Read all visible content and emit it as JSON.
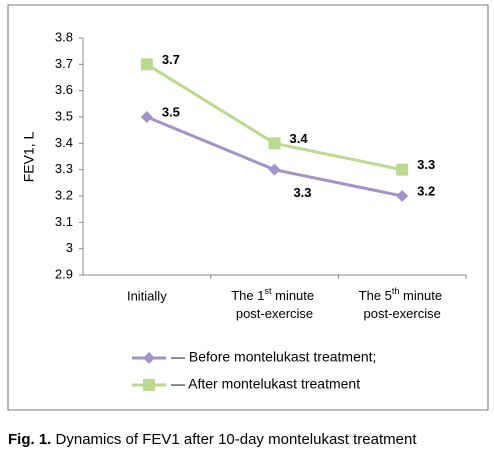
{
  "chart_data": {
    "type": "line",
    "y_label": "FEV1, L",
    "categories": [
      "Initially",
      "The 1st minute post-exercise",
      "The 5th minute post-exercise"
    ],
    "series": [
      {
        "name": "— Before montelukast treatment;",
        "color": "#a293c8",
        "marker": "diamond",
        "values": [
          3.5,
          3.3,
          3.2
        ]
      },
      {
        "name": "— After montelukast treatment",
        "color": "#b9da8f",
        "marker": "square",
        "values": [
          3.7,
          3.4,
          3.3
        ]
      }
    ],
    "ylim": [
      2.9,
      3.8
    ],
    "yticks": [
      2.9,
      3,
      3.1,
      3.2,
      3.3,
      3.4,
      3.5,
      3.6,
      3.7,
      3.8
    ],
    "grid": false
  },
  "figure": {
    "label": "Fig. 1.",
    "caption": "Dynamics of FEV1 after 10-day montelukast treatment"
  }
}
